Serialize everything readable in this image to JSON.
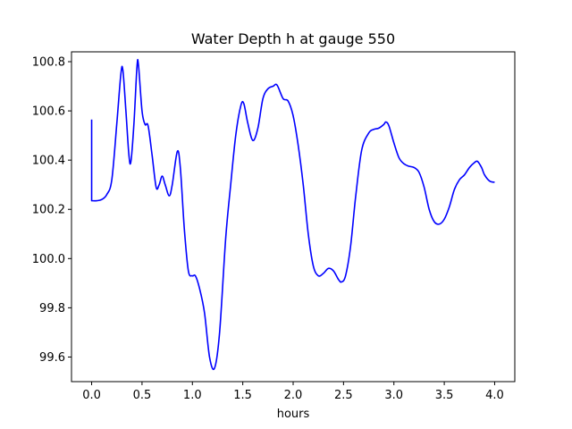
{
  "chart_data": {
    "type": "line",
    "title": "Water Depth h at gauge 550",
    "xlabel": "hours",
    "ylabel": "",
    "xlim": [
      -0.2,
      4.2
    ],
    "ylim": [
      99.5,
      100.84
    ],
    "xticks": [
      0.0,
      0.5,
      1.0,
      1.5,
      2.0,
      2.5,
      3.0,
      3.5,
      4.0
    ],
    "xtick_labels": [
      "0.0",
      "0.5",
      "1.0",
      "1.5",
      "2.0",
      "2.5",
      "3.0",
      "3.5",
      "4.0"
    ],
    "yticks": [
      99.6,
      99.8,
      100.0,
      100.2,
      100.4,
      100.6,
      100.8
    ],
    "ytick_labels": [
      "99.6",
      "99.8",
      "100.0",
      "100.2",
      "100.4",
      "100.6",
      "100.8"
    ],
    "grid": false,
    "series": [
      {
        "color": "#0000ff",
        "points": [
          [
            0.0,
            100.565
          ],
          [
            0.0,
            100.235
          ],
          [
            0.05,
            100.235
          ],
          [
            0.1,
            100.24
          ],
          [
            0.15,
            100.26
          ],
          [
            0.2,
            100.32
          ],
          [
            0.25,
            100.55
          ],
          [
            0.29,
            100.75
          ],
          [
            0.31,
            100.765
          ],
          [
            0.34,
            100.6
          ],
          [
            0.37,
            100.42
          ],
          [
            0.39,
            100.395
          ],
          [
            0.42,
            100.55
          ],
          [
            0.45,
            100.78
          ],
          [
            0.465,
            100.785
          ],
          [
            0.5,
            100.6
          ],
          [
            0.53,
            100.545
          ],
          [
            0.56,
            100.54
          ],
          [
            0.6,
            100.42
          ],
          [
            0.64,
            100.29
          ],
          [
            0.67,
            100.3
          ],
          [
            0.7,
            100.335
          ],
          [
            0.73,
            100.3
          ],
          [
            0.77,
            100.255
          ],
          [
            0.8,
            100.3
          ],
          [
            0.85,
            100.435
          ],
          [
            0.88,
            100.37
          ],
          [
            0.92,
            100.12
          ],
          [
            0.96,
            99.95
          ],
          [
            1.0,
            99.93
          ],
          [
            1.03,
            99.93
          ],
          [
            1.07,
            99.88
          ],
          [
            1.12,
            99.78
          ],
          [
            1.17,
            99.6
          ],
          [
            1.22,
            99.555
          ],
          [
            1.27,
            99.7
          ],
          [
            1.33,
            100.08
          ],
          [
            1.38,
            100.3
          ],
          [
            1.43,
            100.5
          ],
          [
            1.48,
            100.62
          ],
          [
            1.51,
            100.63
          ],
          [
            1.55,
            100.55
          ],
          [
            1.6,
            100.48
          ],
          [
            1.65,
            100.53
          ],
          [
            1.7,
            100.65
          ],
          [
            1.75,
            100.69
          ],
          [
            1.8,
            100.7
          ],
          [
            1.84,
            100.705
          ],
          [
            1.9,
            100.65
          ],
          [
            1.95,
            100.64
          ],
          [
            2.0,
            100.58
          ],
          [
            2.05,
            100.46
          ],
          [
            2.1,
            100.3
          ],
          [
            2.15,
            100.1
          ],
          [
            2.2,
            99.97
          ],
          [
            2.25,
            99.93
          ],
          [
            2.3,
            99.94
          ],
          [
            2.35,
            99.96
          ],
          [
            2.4,
            99.95
          ],
          [
            2.45,
            99.915
          ],
          [
            2.48,
            99.905
          ],
          [
            2.52,
            99.93
          ],
          [
            2.57,
            100.05
          ],
          [
            2.62,
            100.25
          ],
          [
            2.68,
            100.44
          ],
          [
            2.75,
            100.51
          ],
          [
            2.8,
            100.525
          ],
          [
            2.85,
            100.53
          ],
          [
            2.9,
            100.545
          ],
          [
            2.92,
            100.555
          ],
          [
            2.95,
            100.54
          ],
          [
            3.0,
            100.47
          ],
          [
            3.05,
            100.41
          ],
          [
            3.1,
            100.385
          ],
          [
            3.15,
            100.375
          ],
          [
            3.2,
            100.37
          ],
          [
            3.25,
            100.35
          ],
          [
            3.3,
            100.29
          ],
          [
            3.35,
            100.2
          ],
          [
            3.4,
            100.15
          ],
          [
            3.45,
            100.14
          ],
          [
            3.5,
            100.16
          ],
          [
            3.55,
            100.21
          ],
          [
            3.6,
            100.28
          ],
          [
            3.65,
            100.32
          ],
          [
            3.7,
            100.34
          ],
          [
            3.75,
            100.37
          ],
          [
            3.8,
            100.39
          ],
          [
            3.83,
            100.395
          ],
          [
            3.87,
            100.37
          ],
          [
            3.9,
            100.34
          ],
          [
            3.95,
            100.315
          ],
          [
            4.0,
            100.31
          ]
        ]
      }
    ]
  }
}
